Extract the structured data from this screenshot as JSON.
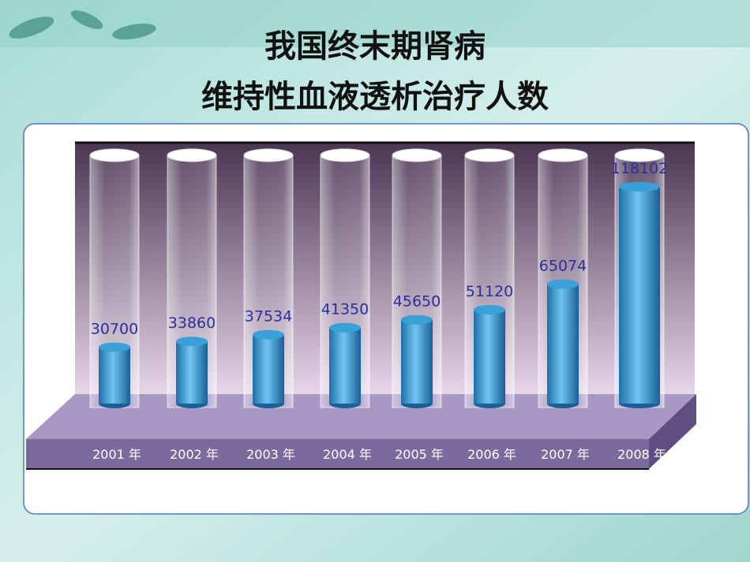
{
  "chart_data": {
    "type": "bar",
    "title": [
      "我国终末期肾病",
      "维持性血液透析治疗人数"
    ],
    "categories": [
      "2001 年",
      "2002 年",
      "2003 年",
      "2004 年",
      "2005 年",
      "2006 年",
      "2007 年",
      "2008 年"
    ],
    "values": [
      30700,
      33860,
      37534,
      41350,
      45650,
      51120,
      65074,
      118102
    ],
    "color": "#3aa0d8"
  }
}
